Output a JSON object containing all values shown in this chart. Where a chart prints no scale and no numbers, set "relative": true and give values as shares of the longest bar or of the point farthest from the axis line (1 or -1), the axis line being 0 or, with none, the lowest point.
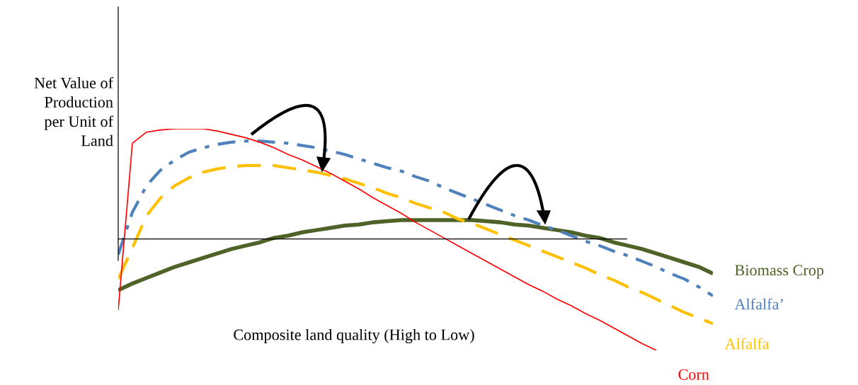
{
  "chart_data": {
    "type": "line",
    "relative": true,
    "xlabel": "Composite land quality (High to Low)",
    "ylabel": "Net Value of\nProduction\nper Unit of\nLand",
    "legend": false,
    "marker": "none",
    "categories": [
      null,
      null,
      null,
      null,
      null,
      null,
      null,
      null,
      null,
      null,
      null,
      null,
      null,
      null,
      null,
      null,
      null,
      null,
      null,
      null,
      null,
      null,
      null,
      null,
      null,
      null,
      null,
      null,
      null,
      null,
      null,
      null,
      null,
      null,
      null,
      null,
      null,
      null,
      null,
      null,
      null,
      null,
      null
    ],
    "series": [
      {
        "name": "Biomass Crop",
        "color": "#4f6228",
        "line_style": "solid",
        "values": [
          -0.46,
          -0.4,
          -0.35,
          -0.3,
          -0.25,
          -0.21,
          -0.17,
          -0.13,
          -0.09,
          -0.06,
          -0.03,
          0.01,
          0.03,
          0.06,
          0.08,
          0.1,
          0.12,
          0.13,
          0.15,
          0.16,
          0.17,
          0.17,
          0.17,
          0.17,
          0.17,
          0.17,
          0.16,
          0.15,
          0.13,
          0.12,
          0.1,
          0.08,
          0.06,
          0.03,
          0.01,
          -0.03,
          -0.06,
          -0.09,
          -0.13,
          -0.17,
          -0.21,
          -0.25,
          -0.31
        ]
      },
      {
        "name": "Alfalfa’",
        "color": "#4f81bd",
        "line_style": "dashdot",
        "values": [
          -0.14,
          0.24,
          0.48,
          0.62,
          0.71,
          0.78,
          0.82,
          0.85,
          0.87,
          0.88,
          0.88,
          0.87,
          0.86,
          0.84,
          0.82,
          0.79,
          0.76,
          0.72,
          0.68,
          0.64,
          0.61,
          0.56,
          0.52,
          0.46,
          0.41,
          0.36,
          0.31,
          0.26,
          0.21,
          0.17,
          0.12,
          0.08,
          0.03,
          -0.02,
          -0.06,
          -0.11,
          -0.15,
          -0.2,
          -0.25,
          -0.31,
          -0.36,
          -0.43,
          -0.51
        ]
      },
      {
        "name": "Alfalfa",
        "color": "#ffc000",
        "line_style": "dashed",
        "values": [
          -0.36,
          -0.08,
          0.21,
          0.37,
          0.48,
          0.55,
          0.6,
          0.63,
          0.65,
          0.66,
          0.66,
          0.66,
          0.64,
          0.62,
          0.6,
          0.57,
          0.54,
          0.5,
          0.46,
          0.41,
          0.37,
          0.32,
          0.28,
          0.24,
          0.18,
          0.14,
          0.09,
          0.04,
          -0.01,
          -0.06,
          -0.11,
          -0.16,
          -0.21,
          -0.26,
          -0.32,
          -0.37,
          -0.43,
          -0.48,
          -0.54,
          -0.6,
          -0.66,
          -0.71,
          -0.76
        ]
      },
      {
        "name": "Corn",
        "color": "#ff0000",
        "line_style": "solid",
        "values": [
          -0.64,
          0.86,
          0.96,
          0.98,
          0.99,
          0.99,
          0.99,
          0.97,
          0.94,
          0.91,
          0.87,
          0.82,
          0.76,
          0.71,
          0.65,
          0.59,
          0.52,
          0.45,
          0.37,
          0.3,
          0.23,
          0.15,
          0.08,
          0.01,
          -0.06,
          -0.13,
          -0.2,
          -0.27,
          -0.34,
          -0.41,
          -0.47,
          -0.54,
          -0.6,
          -0.67,
          -0.73,
          -0.8,
          -0.87,
          -0.94,
          -1.0,
          null,
          null,
          null,
          null
        ]
      }
    ]
  }
}
